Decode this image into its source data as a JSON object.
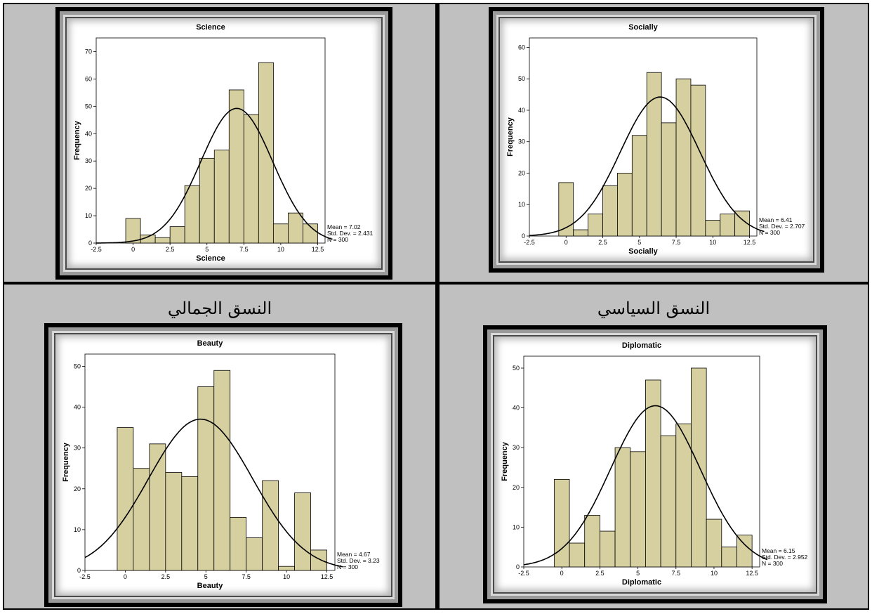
{
  "captions": {
    "top_right": "",
    "top_left": "",
    "bottom_left": "النسق الجمالي",
    "bottom_right": "النسق السياسي"
  },
  "colors": {
    "bar_fill": "#d6cf9f",
    "bar_stroke": "#000000",
    "curve": "#000000",
    "cell_bg": "#c0c0c0"
  },
  "chart_data": [
    {
      "id": "science",
      "type": "bar",
      "title": "Science",
      "xlabel": "Science",
      "ylabel": "Frequency",
      "bin_width": 1,
      "bin_centers": [
        0,
        1,
        2,
        3,
        4,
        5,
        6,
        7,
        8,
        9,
        10,
        11,
        12
      ],
      "values": [
        9,
        3,
        2,
        6,
        21,
        31,
        34,
        56,
        47,
        66,
        7,
        11,
        7
      ],
      "xlim": [
        -2.5,
        13
      ],
      "ylim": [
        0,
        75
      ],
      "x_ticks": [
        -2.5,
        0,
        2.5,
        5,
        7.5,
        10,
        12.5
      ],
      "x_tick_labels": [
        "-2.5",
        "0",
        "2.5",
        "5",
        "7.5",
        "10",
        "12.5"
      ],
      "y_ticks": [
        0,
        10,
        20,
        30,
        40,
        50,
        60,
        70
      ],
      "y_tick_labels": [
        "0",
        "10",
        "20",
        "30",
        "40",
        "50",
        "60",
        "70"
      ],
      "normal": {
        "mean": 7.02,
        "sd": 2.431,
        "n": 300
      },
      "stats": {
        "mean": "Mean = 7.02",
        "sd": "Std. Dev. = 2.431",
        "n": "N = 300"
      },
      "grid": false
    },
    {
      "id": "socially",
      "type": "bar",
      "title": "Socially",
      "xlabel": "Socially",
      "ylabel": "Frequency",
      "bin_width": 1,
      "bin_centers": [
        0,
        1,
        2,
        3,
        4,
        5,
        6,
        7,
        8,
        9,
        10,
        11,
        12
      ],
      "values": [
        17,
        2,
        7,
        16,
        20,
        32,
        52,
        36,
        50,
        48,
        5,
        7,
        8
      ],
      "xlim": [
        -2.5,
        13
      ],
      "ylim": [
        0,
        63
      ],
      "x_ticks": [
        -2.5,
        0,
        2.5,
        5,
        7.5,
        10,
        12.5
      ],
      "x_tick_labels": [
        "-2.5",
        "0",
        "2.5",
        "5",
        "7.5",
        "10",
        "12.5"
      ],
      "y_ticks": [
        0,
        10,
        20,
        30,
        40,
        50,
        60
      ],
      "y_tick_labels": [
        "0",
        "10",
        "20",
        "30",
        "40",
        "50",
        "60"
      ],
      "normal": {
        "mean": 6.41,
        "sd": 2.707,
        "n": 300
      },
      "stats": {
        "mean": "Mean = 6.41",
        "sd": "Std. Dev. = 2.707",
        "n": "N = 300"
      },
      "grid": false
    },
    {
      "id": "beauty",
      "type": "bar",
      "title": "Beauty",
      "xlabel": "Beauty",
      "ylabel": "Frequency",
      "bin_width": 1,
      "bin_centers": [
        0,
        1,
        2,
        3,
        4,
        5,
        6,
        7,
        8,
        9,
        10,
        11,
        12
      ],
      "values": [
        35,
        25,
        31,
        24,
        23,
        45,
        49,
        13,
        8,
        22,
        1,
        19,
        5
      ],
      "xlim": [
        -2.5,
        13
      ],
      "ylim": [
        0,
        53
      ],
      "x_ticks": [
        -2.5,
        0,
        2.5,
        5,
        7.5,
        10,
        12.5
      ],
      "x_tick_labels": [
        "-2.5",
        "0",
        "2.5",
        "5",
        "7.5",
        "10",
        "12.5"
      ],
      "y_ticks": [
        0,
        10,
        20,
        30,
        40,
        50
      ],
      "y_tick_labels": [
        "0",
        "10",
        "20",
        "30",
        "40",
        "50"
      ],
      "normal": {
        "mean": 4.67,
        "sd": 3.23,
        "n": 300
      },
      "stats": {
        "mean": "Mean = 4.67",
        "sd": "Std. Dev. = 3.23",
        "n": "N = 300"
      },
      "grid": false
    },
    {
      "id": "diplomatic",
      "type": "bar",
      "title": "Diplomatic",
      "xlabel": "Diplomatic",
      "ylabel": "Frequency",
      "bin_width": 1,
      "bin_centers": [
        0,
        1,
        2,
        3,
        4,
        5,
        6,
        7,
        8,
        9,
        10,
        11,
        12
      ],
      "values": [
        22,
        6,
        13,
        9,
        30,
        29,
        47,
        33,
        36,
        50,
        12,
        5,
        8
      ],
      "xlim": [
        -2.5,
        13
      ],
      "ylim": [
        0,
        53
      ],
      "x_ticks": [
        -2.5,
        0,
        2.5,
        5,
        7.5,
        10,
        12.5
      ],
      "x_tick_labels": [
        "-2.5",
        "0",
        "2.5",
        "5",
        "7.5",
        "10",
        "12.5"
      ],
      "y_ticks": [
        0,
        10,
        20,
        30,
        40,
        50
      ],
      "y_tick_labels": [
        "0",
        "10",
        "20",
        "30",
        "40",
        "50"
      ],
      "normal": {
        "mean": 6.15,
        "sd": 2.952,
        "n": 300
      },
      "stats": {
        "mean": "Mean = 6.15",
        "sd": "Std. Dev. = 2.952",
        "n": "N = 300"
      },
      "grid": false
    }
  ]
}
